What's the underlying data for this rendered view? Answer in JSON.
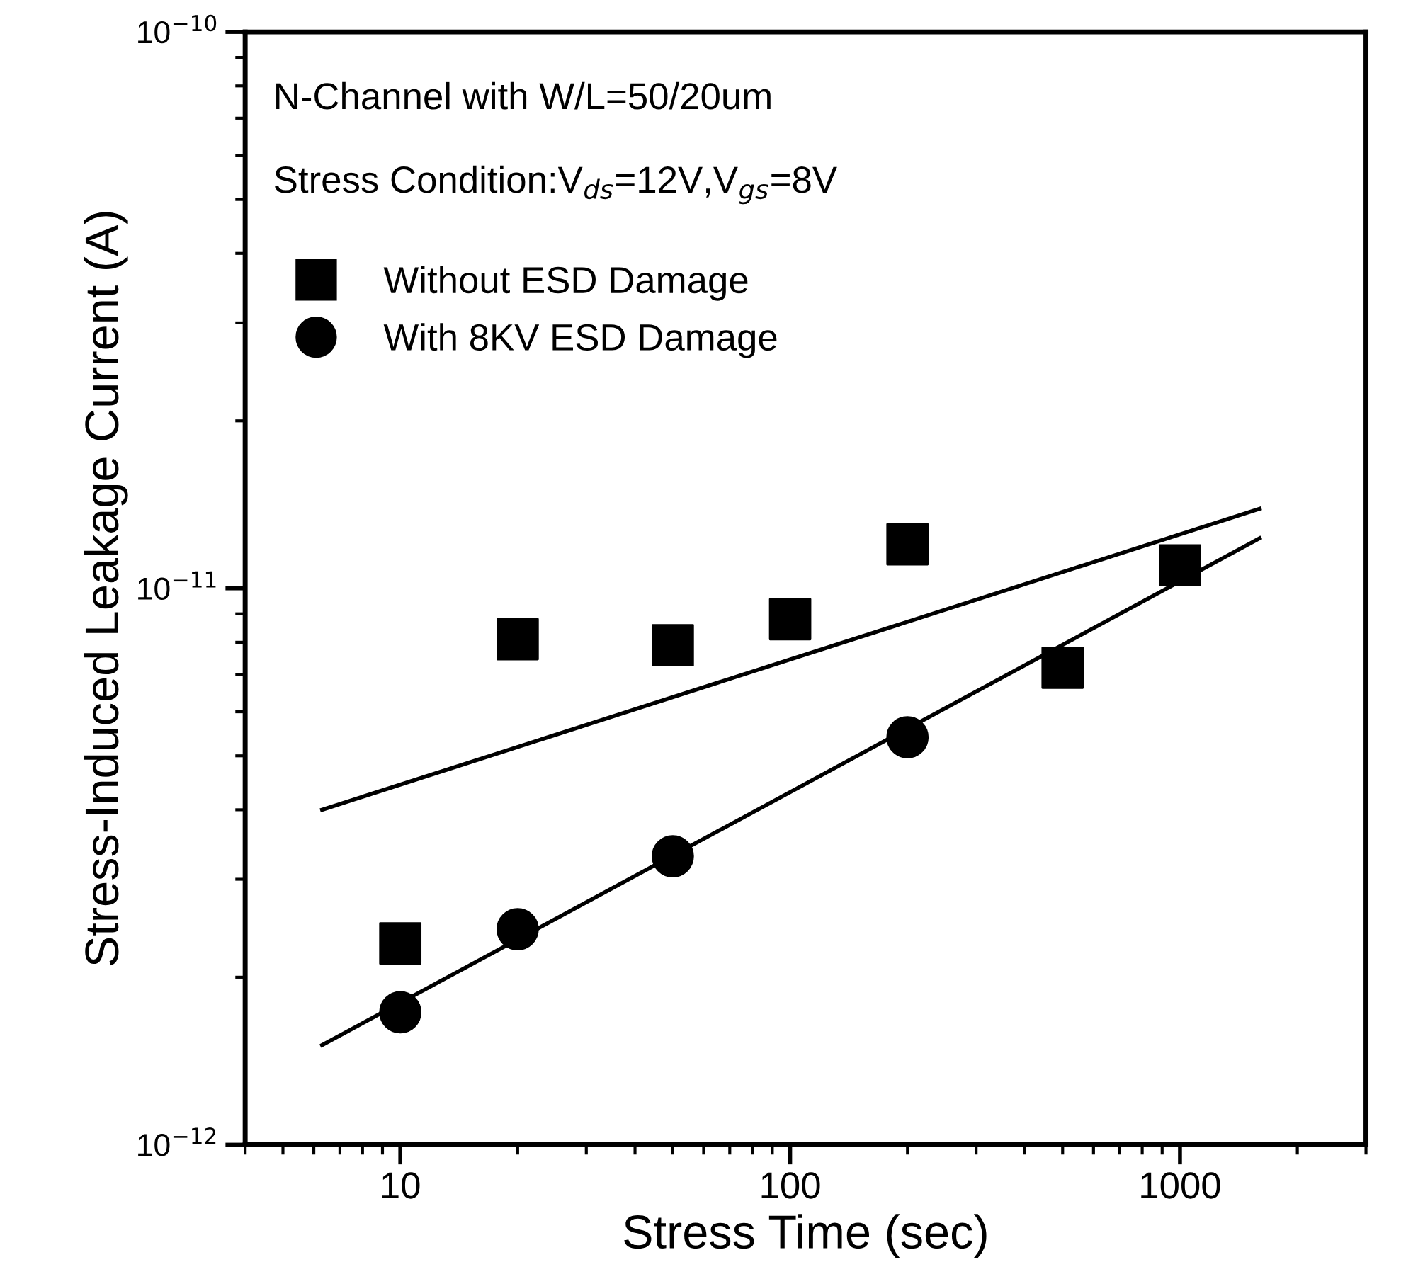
{
  "chart_data": {
    "type": "scatter",
    "xlabel": "Stress Time (sec)",
    "ylabel": "Stress-Induced Leakage Current (A)",
    "annotations": [
      "N-Channel with W/L=50/20um",
      "Stress Condition:V$_{ds}$=12V,V$_{gs}$=8V"
    ],
    "log": "xy",
    "xlim": [
      4,
      3000
    ],
    "ylim": [
      1e-12,
      1e-10
    ],
    "xticks": [
      10,
      100,
      1000
    ],
    "yticks": [
      {
        "value": 1e-12,
        "label": "10$^{−12}$"
      },
      {
        "value": 1e-11,
        "label": "10$^{−11}$"
      },
      {
        "value": 1e-10,
        "label": "10$^{−10}$"
      }
    ],
    "legend": "top left",
    "grid": false,
    "series": [
      {
        "name": "Without ESD Damage",
        "marker": "square",
        "color": "#000000",
        "x": [
          10,
          20,
          50,
          100,
          200,
          500,
          1000
        ],
        "values": [
          2.3e-12,
          8.1e-12,
          7.9e-12,
          8.8e-12,
          1.2e-11,
          7.2e-12,
          1.1e-11
        ]
      },
      {
        "name": "With 8KV ESD Damage",
        "marker": "circle",
        "color": "#000000",
        "x": [
          10,
          20,
          50,
          200
        ],
        "values": [
          1.73e-12,
          2.44e-12,
          3.3e-12,
          5.4e-12
        ]
      },
      {
        "type": "line",
        "color": "#000000",
        "line_style": "solid",
        "x": [
          6.3,
          1600
        ],
        "values": [
          4e-12,
          1.39e-11
        ]
      },
      {
        "type": "line",
        "color": "#000000",
        "line_style": "solid",
        "x": [
          6.3,
          1600
        ],
        "values": [
          1.51e-12,
          1.23e-11
        ]
      }
    ]
  }
}
